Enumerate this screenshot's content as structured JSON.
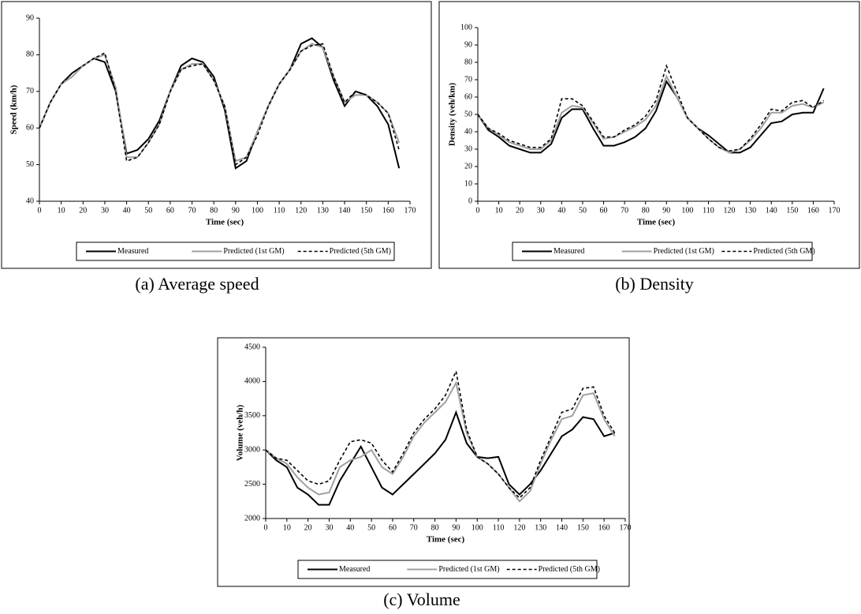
{
  "chart_data": [
    {
      "type": "line",
      "caption": "(a)  Average speed",
      "xlabel": "Time (sec)",
      "ylabel": "Speed (km/h)",
      "xlim": [
        0,
        170
      ],
      "xticks": [
        0,
        10,
        20,
        30,
        40,
        50,
        60,
        70,
        80,
        90,
        100,
        110,
        120,
        130,
        140,
        150,
        160,
        170
      ],
      "ylim": [
        40,
        90
      ],
      "yticks": [
        40,
        50,
        60,
        70,
        80,
        90
      ],
      "x": [
        0,
        5,
        10,
        15,
        20,
        25,
        30,
        35,
        40,
        45,
        50,
        55,
        60,
        65,
        70,
        75,
        80,
        85,
        90,
        95,
        100,
        105,
        110,
        115,
        120,
        125,
        130,
        135,
        140,
        145,
        150,
        155,
        160,
        165
      ],
      "series": [
        {
          "name": "Measured",
          "color": "#000000",
          "style": "solid",
          "values": [
            60,
            67,
            72,
            75,
            77,
            79,
            78,
            70,
            53,
            54,
            57,
            62,
            70,
            77,
            79,
            78,
            74,
            65,
            49,
            51,
            59,
            66,
            72,
            76,
            83,
            84.5,
            82,
            73,
            66,
            70,
            69,
            66,
            61,
            49
          ]
        },
        {
          "name": "Predicted (1st GM)",
          "color": "#a0a0a0",
          "style": "double",
          "values": [
            60,
            67,
            72,
            74,
            77,
            79,
            80,
            71,
            52,
            52,
            56,
            61,
            70,
            76,
            77.5,
            77.5,
            73,
            66,
            51,
            52,
            59,
            66,
            72,
            76,
            81,
            83,
            82,
            74,
            67,
            69,
            69,
            67,
            64,
            56
          ]
        },
        {
          "name": "Predicted (5th GM)",
          "color": "#000000",
          "style": "dashed",
          "values": [
            60,
            67,
            72,
            75,
            77,
            79,
            80.5,
            70,
            51,
            52,
            56,
            61,
            70,
            76,
            77,
            77.5,
            73,
            66,
            50,
            52,
            58,
            66,
            72,
            76,
            81,
            82.5,
            83,
            74,
            67,
            70,
            69,
            67,
            64,
            54
          ]
        }
      ]
    },
    {
      "type": "line",
      "caption": "(b)  Density",
      "xlabel": "Time (sec)",
      "ylabel": "Density (veh/km)",
      "xlim": [
        0,
        170
      ],
      "xticks": [
        0,
        10,
        20,
        30,
        40,
        50,
        60,
        70,
        80,
        90,
        100,
        110,
        120,
        130,
        140,
        150,
        160,
        170
      ],
      "ylim": [
        0,
        100
      ],
      "yticks": [
        0,
        10,
        20,
        30,
        40,
        50,
        60,
        70,
        80,
        90,
        100
      ],
      "x": [
        0,
        5,
        10,
        15,
        20,
        25,
        30,
        35,
        40,
        45,
        50,
        55,
        60,
        65,
        70,
        75,
        80,
        85,
        90,
        95,
        100,
        105,
        110,
        115,
        120,
        125,
        130,
        135,
        140,
        145,
        150,
        155,
        160,
        165
      ],
      "series": [
        {
          "name": "Measured",
          "color": "#000000",
          "style": "solid",
          "values": [
            50,
            41,
            37,
            32,
            30,
            28,
            28,
            33,
            48,
            53,
            53,
            42,
            32,
            32,
            34,
            37,
            42,
            52,
            69,
            60,
            48,
            42,
            38,
            33,
            28,
            28,
            31,
            38,
            45,
            46,
            50,
            51,
            51,
            65
          ]
        },
        {
          "name": "Predicted (1st GM)",
          "color": "#a0a0a0",
          "style": "double",
          "values": [
            50,
            42,
            38,
            34,
            32,
            30,
            30,
            35,
            51,
            55,
            54,
            45,
            36,
            37,
            40,
            43,
            47,
            55,
            72,
            60,
            48,
            42,
            36,
            31,
            28,
            30,
            35,
            42,
            51,
            51,
            55,
            56,
            54,
            57
          ]
        },
        {
          "name": "Predicted (5th GM)",
          "color": "#000000",
          "style": "dashed",
          "values": [
            50,
            42,
            39,
            35,
            33,
            31,
            31,
            36,
            59,
            59,
            55,
            46,
            37,
            37,
            41,
            44,
            49,
            58,
            78,
            63,
            48,
            42,
            36,
            31,
            29,
            30,
            36,
            44,
            53,
            52,
            57,
            58,
            54,
            58
          ]
        }
      ]
    },
    {
      "type": "line",
      "caption": "(c)  Volume",
      "xlabel": "Time (sec)",
      "ylabel": "Volume (veh/h)",
      "xlim": [
        0,
        170
      ],
      "xticks": [
        0,
        10,
        20,
        30,
        40,
        50,
        60,
        70,
        80,
        90,
        100,
        110,
        120,
        130,
        140,
        150,
        160,
        170
      ],
      "ylim": [
        2000,
        4500
      ],
      "yticks": [
        2000,
        2500,
        3000,
        3500,
        4000,
        4500
      ],
      "x": [
        0,
        5,
        10,
        15,
        20,
        25,
        30,
        35,
        40,
        45,
        50,
        55,
        60,
        65,
        70,
        75,
        80,
        85,
        90,
        95,
        100,
        105,
        110,
        115,
        120,
        125,
        130,
        135,
        140,
        145,
        150,
        155,
        160,
        165
      ],
      "series": [
        {
          "name": "Measured",
          "color": "#000000",
          "style": "solid",
          "values": [
            3000,
            2850,
            2750,
            2450,
            2350,
            2200,
            2200,
            2550,
            2800,
            3050,
            2750,
            2450,
            2350,
            2500,
            2650,
            2800,
            2950,
            3150,
            3550,
            3100,
            2900,
            2880,
            2900,
            2500,
            2350,
            2500,
            2700,
            2950,
            3200,
            3300,
            3480,
            3450,
            3200,
            3250
          ]
        },
        {
          "name": "Predicted (1st GM)",
          "color": "#a0a0a0",
          "style": "double",
          "values": [
            3000,
            2880,
            2800,
            2600,
            2450,
            2350,
            2380,
            2750,
            2850,
            2900,
            3000,
            2750,
            2650,
            2900,
            3200,
            3400,
            3550,
            3700,
            3980,
            3250,
            2900,
            2800,
            2650,
            2450,
            2250,
            2400,
            2800,
            3150,
            3450,
            3500,
            3800,
            3830,
            3450,
            3200
          ]
        },
        {
          "name": "Predicted (5th GM)",
          "color": "#000000",
          "style": "dashed",
          "values": [
            3000,
            2880,
            2850,
            2700,
            2550,
            2500,
            2550,
            2850,
            3120,
            3150,
            3100,
            2850,
            2680,
            2950,
            3250,
            3450,
            3600,
            3800,
            4150,
            3300,
            2900,
            2800,
            2650,
            2450,
            2300,
            2450,
            2850,
            3200,
            3550,
            3600,
            3900,
            3920,
            3500,
            3250
          ]
        }
      ]
    }
  ]
}
